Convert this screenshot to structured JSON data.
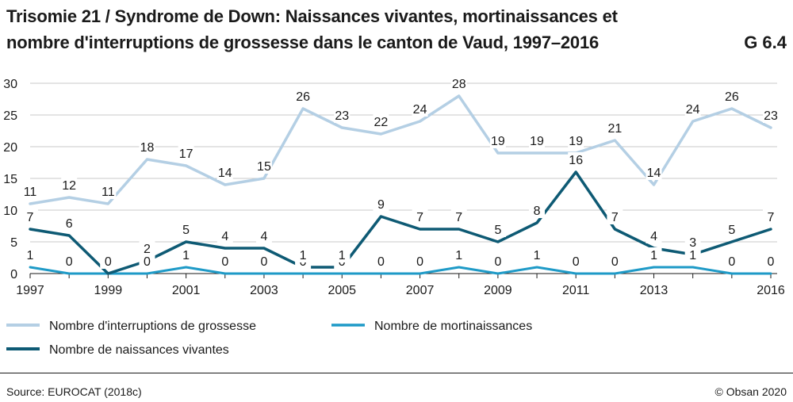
{
  "header": {
    "title_line1": "Trisomie 21 / Syndrome de Down: Naissances vivantes, mortinaissances et",
    "title_line2": "nombre d'interruptions de grossesse dans le canton de Vaud, 1997–2016",
    "figure_number": "G 6.4"
  },
  "footer": {
    "source": "Source: EUROCAT (2018c)",
    "copyright": "© Obsan 2020"
  },
  "chart_data": {
    "type": "line",
    "title": "Trisomie 21 / Syndrome de Down: Naissances vivantes, mortinaissances et nombre d'interruptions de grossesse dans le canton de Vaud, 1997–2016",
    "xlabel": "",
    "ylabel": "",
    "ylim": [
      0,
      30
    ],
    "yticks": [
      0,
      5,
      10,
      15,
      20,
      25,
      30
    ],
    "x": [
      1997,
      1998,
      1999,
      2000,
      2001,
      2002,
      2003,
      2004,
      2005,
      2006,
      2007,
      2008,
      2009,
      2010,
      2011,
      2012,
      2013,
      2014,
      2015,
      2016
    ],
    "xtick_labels": [
      "1997",
      "1999",
      "2001",
      "2003",
      "2005",
      "2007",
      "2009",
      "2011",
      "2013",
      "2016"
    ],
    "xtick_years": [
      1997,
      1999,
      2001,
      2003,
      2005,
      2007,
      2009,
      2011,
      2013,
      2016
    ],
    "grid": "horizontal",
    "legend_position": "bottom",
    "series": [
      {
        "name": "Nombre d'interruptions de grossesse",
        "color": "#b4cfe4",
        "values": [
          11,
          12,
          11,
          18,
          17,
          14,
          15,
          26,
          23,
          22,
          24,
          28,
          19,
          19,
          19,
          21,
          14,
          24,
          26,
          23
        ]
      },
      {
        "name": "Nombre de mortinaissances",
        "color": "#1e9ac7",
        "values": [
          1,
          0,
          0,
          0,
          1,
          0,
          0,
          0,
          0,
          0,
          0,
          1,
          0,
          1,
          0,
          0,
          1,
          1,
          0,
          0
        ]
      },
      {
        "name": "Nombre de naissances vivantes",
        "color": "#0e5a74",
        "values": [
          7,
          6,
          0,
          2,
          5,
          4,
          4,
          1,
          1,
          9,
          7,
          7,
          5,
          8,
          16,
          7,
          4,
          3,
          5,
          7
        ]
      }
    ]
  }
}
